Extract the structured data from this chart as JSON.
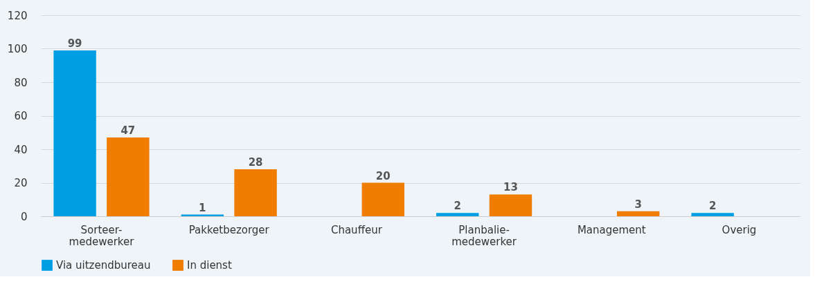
{
  "chart_data": {
    "type": "bar",
    "categories": [
      "Sorteer-\nmedewerker",
      "Pakketbezorger",
      "Chauffeur",
      "Planbalie-\nmedewerker",
      "Management",
      "Overig"
    ],
    "series": [
      {
        "name": "Via uitzendbureau",
        "color": "#009fe3",
        "values": [
          99,
          1,
          null,
          2,
          null,
          2
        ]
      },
      {
        "name": "In dienst",
        "color": "#f07c00",
        "values": [
          47,
          28,
          20,
          13,
          3,
          null
        ]
      }
    ],
    "ylim": [
      0,
      120
    ],
    "yticks": [
      0,
      20,
      40,
      60,
      80,
      100,
      120
    ],
    "grid": "y",
    "legend": "bottom",
    "data_labels": true
  }
}
